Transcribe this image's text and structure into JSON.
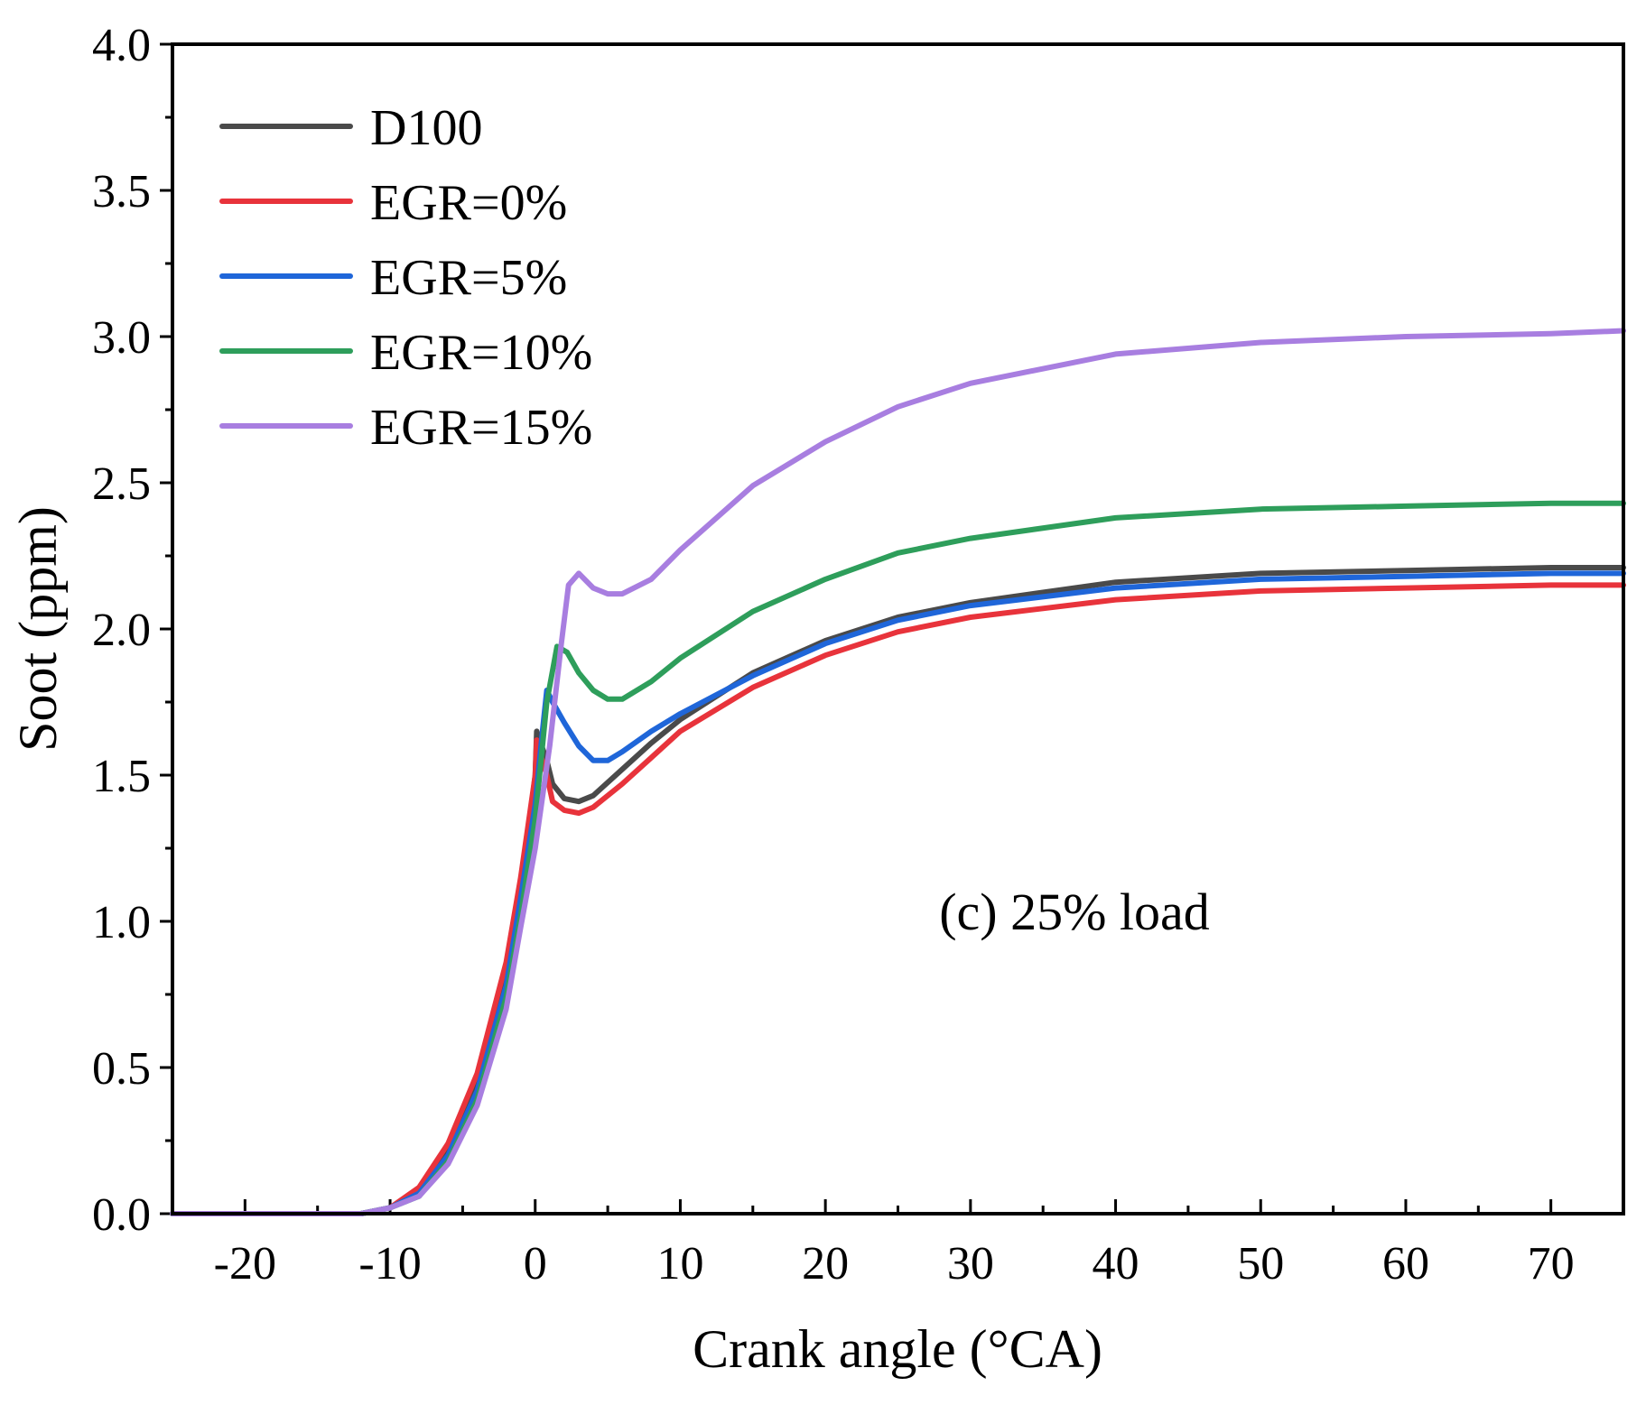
{
  "chart_data": {
    "type": "line",
    "xlabel": "Crank angle (°CA)",
    "ylabel": "Soot (ppm)",
    "xlim": [
      -25,
      75
    ],
    "ylim": [
      0,
      4.0
    ],
    "xticks": [
      -20,
      -10,
      0,
      10,
      20,
      30,
      40,
      50,
      60,
      70
    ],
    "xtick_labels": [
      "-20",
      "-10",
      "0",
      "10",
      "20",
      "30",
      "40",
      "50",
      "60",
      "70"
    ],
    "yticks": [
      0,
      0.5,
      1.0,
      1.5,
      2.0,
      2.5,
      3.0,
      3.5,
      4.0
    ],
    "ytick_labels": [
      "0.0",
      "0.5",
      "1.0",
      "1.5",
      "2.0",
      "2.5",
      "3.0",
      "3.5",
      "4.0"
    ],
    "annotation": "(c) 25% load",
    "legend_position": "top-left",
    "series": [
      {
        "name": "D100",
        "color": "#4a4a4a",
        "points": [
          [
            -25,
            0
          ],
          [
            -12,
            0
          ],
          [
            -10,
            0.02
          ],
          [
            -8,
            0.08
          ],
          [
            -6,
            0.22
          ],
          [
            -4,
            0.45
          ],
          [
            -2,
            0.82
          ],
          [
            -1,
            1.1
          ],
          [
            0,
            1.5
          ],
          [
            0.1,
            1.65
          ],
          [
            0.3,
            1.62
          ],
          [
            0.8,
            1.55
          ],
          [
            1.2,
            1.47
          ],
          [
            2,
            1.42
          ],
          [
            3,
            1.41
          ],
          [
            4,
            1.43
          ],
          [
            6,
            1.52
          ],
          [
            8,
            1.61
          ],
          [
            10,
            1.69
          ],
          [
            15,
            1.85
          ],
          [
            20,
            1.96
          ],
          [
            25,
            2.04
          ],
          [
            30,
            2.09
          ],
          [
            40,
            2.16
          ],
          [
            50,
            2.19
          ],
          [
            60,
            2.2
          ],
          [
            70,
            2.21
          ],
          [
            75,
            2.21
          ]
        ]
      },
      {
        "name": "EGR=0%",
        "color": "#e8333b",
        "points": [
          [
            -25,
            0
          ],
          [
            -12,
            0
          ],
          [
            -10,
            0.02
          ],
          [
            -8,
            0.09
          ],
          [
            -6,
            0.24
          ],
          [
            -4,
            0.48
          ],
          [
            -2,
            0.86
          ],
          [
            -1,
            1.15
          ],
          [
            0,
            1.5
          ],
          [
            0.1,
            1.62
          ],
          [
            0.3,
            1.58
          ],
          [
            0.8,
            1.5
          ],
          [
            1.2,
            1.41
          ],
          [
            2,
            1.38
          ],
          [
            3,
            1.37
          ],
          [
            4,
            1.39
          ],
          [
            6,
            1.47
          ],
          [
            8,
            1.56
          ],
          [
            10,
            1.65
          ],
          [
            15,
            1.8
          ],
          [
            20,
            1.91
          ],
          [
            25,
            1.99
          ],
          [
            30,
            2.04
          ],
          [
            40,
            2.1
          ],
          [
            50,
            2.13
          ],
          [
            60,
            2.14
          ],
          [
            70,
            2.15
          ],
          [
            75,
            2.15
          ]
        ]
      },
      {
        "name": "EGR=5%",
        "color": "#1f66d9",
        "points": [
          [
            -25,
            0
          ],
          [
            -12,
            0
          ],
          [
            -10,
            0.02
          ],
          [
            -8,
            0.07
          ],
          [
            -6,
            0.2
          ],
          [
            -4,
            0.42
          ],
          [
            -2,
            0.78
          ],
          [
            -1,
            1.08
          ],
          [
            0,
            1.4
          ],
          [
            0.5,
            1.65
          ],
          [
            0.8,
            1.79
          ],
          [
            1.2,
            1.75
          ],
          [
            2,
            1.68
          ],
          [
            3,
            1.6
          ],
          [
            4,
            1.55
          ],
          [
            5,
            1.55
          ],
          [
            6,
            1.58
          ],
          [
            8,
            1.65
          ],
          [
            10,
            1.71
          ],
          [
            15,
            1.84
          ],
          [
            20,
            1.95
          ],
          [
            25,
            2.03
          ],
          [
            30,
            2.08
          ],
          [
            40,
            2.14
          ],
          [
            50,
            2.17
          ],
          [
            60,
            2.18
          ],
          [
            70,
            2.19
          ],
          [
            75,
            2.19
          ]
        ]
      },
      {
        "name": "EGR=10%",
        "color": "#2e9e5b",
        "points": [
          [
            -25,
            0
          ],
          [
            -12,
            0
          ],
          [
            -10,
            0.02
          ],
          [
            -8,
            0.06
          ],
          [
            -6,
            0.18
          ],
          [
            -4,
            0.39
          ],
          [
            -2,
            0.74
          ],
          [
            -1,
            1.02
          ],
          [
            0,
            1.35
          ],
          [
            0.8,
            1.75
          ],
          [
            1.5,
            1.94
          ],
          [
            2.2,
            1.92
          ],
          [
            3,
            1.85
          ],
          [
            4,
            1.79
          ],
          [
            5,
            1.76
          ],
          [
            6,
            1.76
          ],
          [
            8,
            1.82
          ],
          [
            10,
            1.9
          ],
          [
            15,
            2.06
          ],
          [
            20,
            2.17
          ],
          [
            25,
            2.26
          ],
          [
            30,
            2.31
          ],
          [
            40,
            2.38
          ],
          [
            50,
            2.41
          ],
          [
            60,
            2.42
          ],
          [
            70,
            2.43
          ],
          [
            75,
            2.43
          ]
        ]
      },
      {
        "name": "EGR=15%",
        "color": "#a87ee0",
        "points": [
          [
            -25,
            0
          ],
          [
            -12,
            0
          ],
          [
            -10,
            0.02
          ],
          [
            -8,
            0.06
          ],
          [
            -6,
            0.17
          ],
          [
            -4,
            0.37
          ],
          [
            -2,
            0.7
          ],
          [
            -1,
            0.98
          ],
          [
            0,
            1.25
          ],
          [
            1,
            1.6
          ],
          [
            1.8,
            1.95
          ],
          [
            2.3,
            2.15
          ],
          [
            3,
            2.19
          ],
          [
            4,
            2.14
          ],
          [
            5,
            2.12
          ],
          [
            6,
            2.12
          ],
          [
            8,
            2.17
          ],
          [
            10,
            2.27
          ],
          [
            15,
            2.49
          ],
          [
            20,
            2.64
          ],
          [
            25,
            2.76
          ],
          [
            30,
            2.84
          ],
          [
            40,
            2.94
          ],
          [
            50,
            2.98
          ],
          [
            60,
            3.0
          ],
          [
            70,
            3.01
          ],
          [
            75,
            3.02
          ]
        ]
      }
    ]
  }
}
